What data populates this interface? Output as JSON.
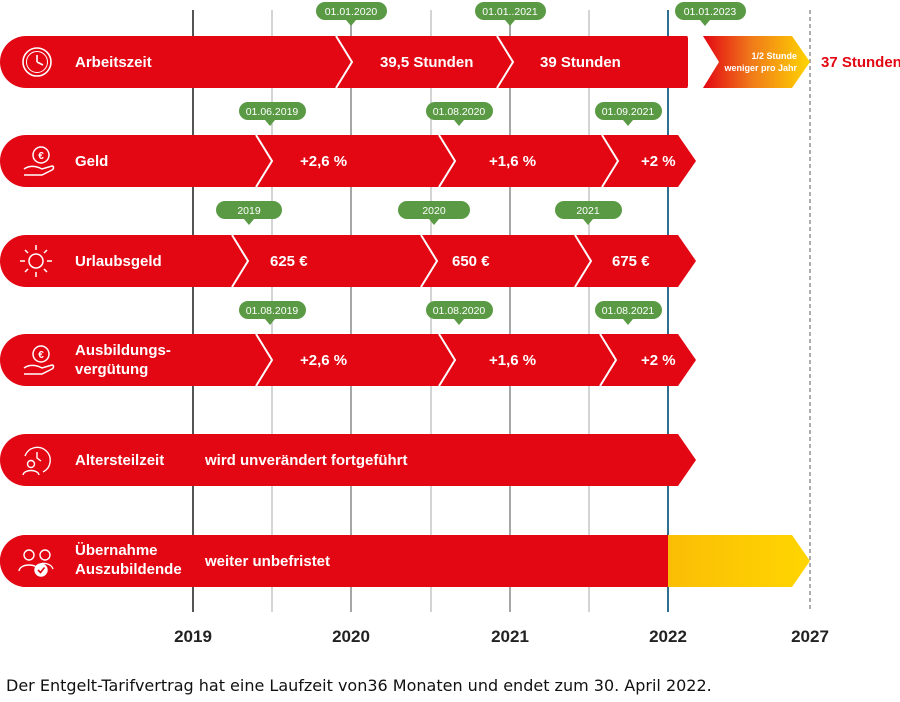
{
  "colors": {
    "red": "#e30613",
    "green": "#5a9a45",
    "yellow": "#ffd500",
    "grid": "#888888",
    "end_line": "#2f6f8f"
  },
  "years": [
    "2019",
    "2020",
    "2021",
    "2022",
    "2027"
  ],
  "rows": [
    {
      "icon": "clock-icon",
      "label_lines": [
        "Arbeitszeit"
      ],
      "segments": [
        "",
        "39,5 Stunden",
        "39 Stunden"
      ],
      "tags": [
        "01.01.2020",
        "01.01..2021",
        "01.01.2023"
      ],
      "gradient_note_lines": [
        "1/2 Stunde",
        "weniger pro Jahr"
      ],
      "outside_label": "37 Stunden"
    },
    {
      "icon": "euro-hand-icon",
      "label_lines": [
        "Geld"
      ],
      "segments": [
        "",
        "+2,6 %",
        "+1,6 %",
        "+2 %"
      ],
      "tags": [
        "01.06.2019",
        "01.08.2020",
        "01.09.2021"
      ]
    },
    {
      "icon": "sun-icon",
      "label_lines": [
        "Urlaubsgeld"
      ],
      "segments": [
        "",
        "625 €",
        "650 €",
        "675 €"
      ],
      "tags": [
        "2019",
        "2020",
        "2021"
      ]
    },
    {
      "icon": "euro-hand-icon",
      "label_lines": [
        "Ausbildungs-",
        "vergütung"
      ],
      "segments": [
        "",
        "+2,6 %",
        "+1,6 %",
        "+2 %"
      ],
      "tags": [
        "01.08.2019",
        "01.08.2020",
        "01.08.2021"
      ]
    },
    {
      "icon": "clock-person-icon",
      "label_lines": [
        "Altersteilzeit"
      ],
      "segments": [
        "wird unverändert fortgeführt"
      ],
      "tags": []
    },
    {
      "icon": "people-check-icon",
      "label_lines": [
        "Übernahme",
        "Auszubildende"
      ],
      "segments": [
        "weiter unbefristet"
      ],
      "tags": []
    }
  ],
  "caption": "Der Entgelt-Tarifvertrag hat eine Laufzeit von36 Monaten und endet zum 30. April 2022."
}
